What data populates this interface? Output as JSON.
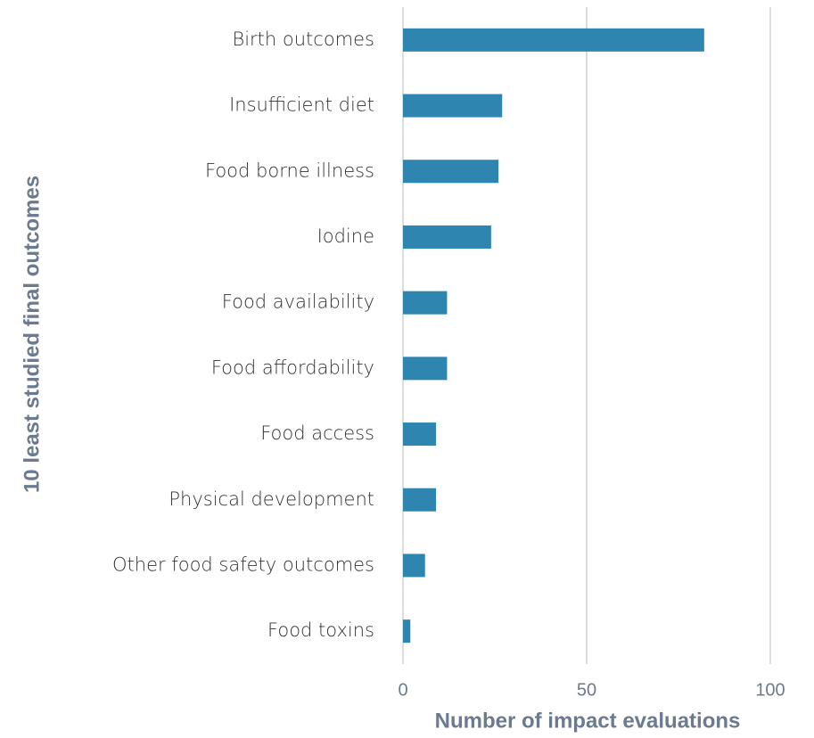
{
  "chart_data": {
    "type": "barh",
    "xlabel": "Number of impact evaluations",
    "ylabel": "10 least studied final outcomes",
    "categories": [
      "Birth outcomes",
      "Insufficient diet",
      "Food borne illness",
      "Iodine",
      "Food availability",
      "Food affordability",
      "Food access",
      "Physical development",
      "Other food safety outcomes",
      "Food toxins"
    ],
    "values": [
      82,
      27,
      26,
      24,
      12,
      12,
      9,
      9,
      6,
      2
    ],
    "color": "#2e86b0",
    "xlim": [
      0,
      100
    ],
    "xticks": [
      0,
      50,
      100
    ],
    "grid": true
  }
}
